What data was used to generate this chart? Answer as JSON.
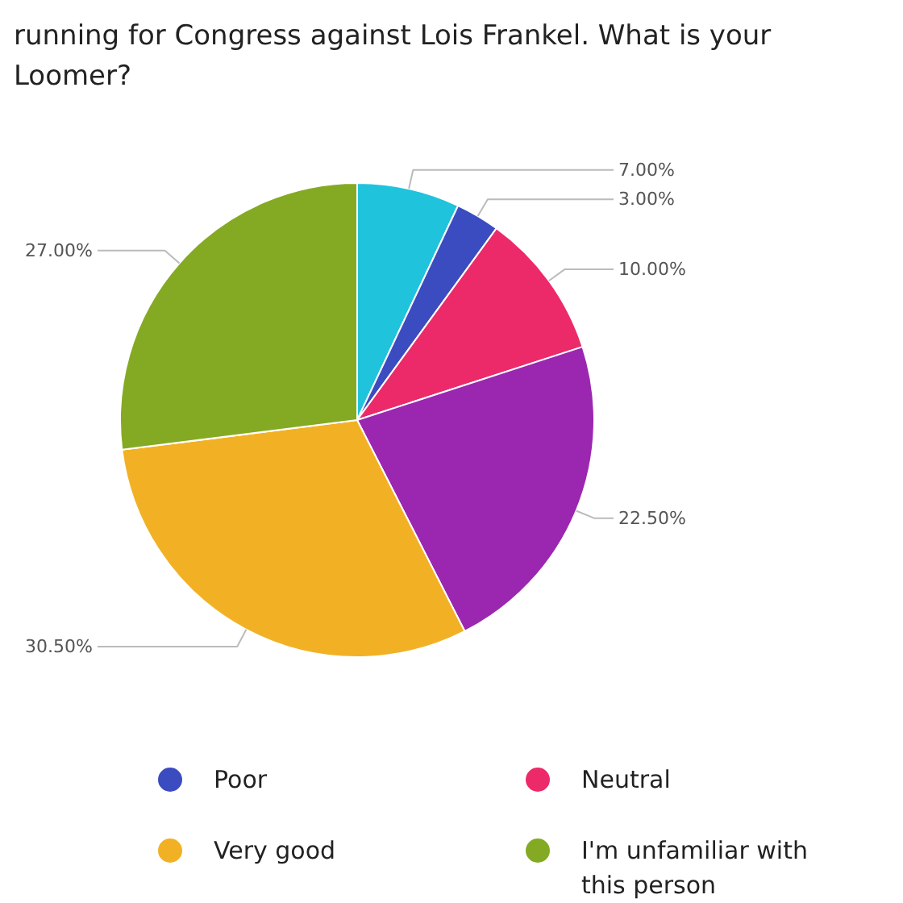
{
  "chart_data": {
    "type": "pie",
    "title": "running for Congress against Lois Frankel.  What is your\nLoomer?",
    "categories": [
      null,
      "Poor",
      "Neutral",
      null,
      "Very good",
      "I'm unfamiliar with\nthis person"
    ],
    "values": [
      7,
      3,
      10,
      22.5,
      30.5,
      27
    ],
    "value_labels": [
      "7.00%",
      "3.00%",
      "10.00%",
      "22.50%",
      "30.50%",
      "27.00%"
    ],
    "colors": [
      "#1fc3dc",
      "#3b4cc0",
      "#ec2a6a",
      "#9b27b0",
      "#f2b124",
      "#84aa23"
    ],
    "legend": "bottom"
  }
}
